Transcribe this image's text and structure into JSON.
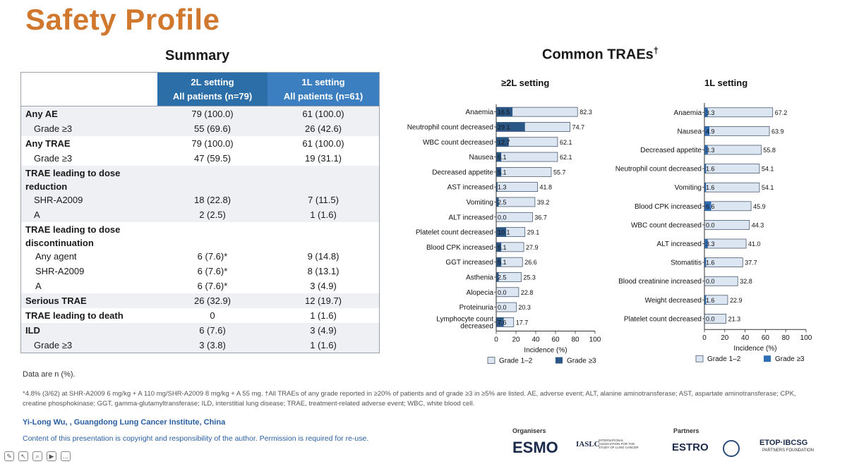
{
  "title": "Safety Profile",
  "summary": {
    "heading": "Summary",
    "col1": [
      "2L setting",
      "All patients (n=79)"
    ],
    "col2": [
      "1L setting",
      "All patients (n=61)"
    ],
    "rows": [
      {
        "label": "Any AE",
        "v1": "79 (100.0)",
        "v2": "61 (100.0)"
      },
      {
        "label": "Grade ≥3",
        "v1": "55 (69.6)",
        "v2": "26 (42.6)"
      },
      {
        "label": "Any TRAE",
        "v1": "79 (100.0)",
        "v2": "61 (100.0)"
      },
      {
        "label": "Grade ≥3",
        "v1": "47 (59.5)",
        "v2": "19 (31.1)"
      },
      {
        "label": "TRAE  leading to dose reduction",
        "v1": "",
        "v2": ""
      },
      {
        "label": "SHR-A2009",
        "v1": "18 (22.8)",
        "v2": "7 (11.5)"
      },
      {
        "label": "A",
        "v1": "2 (2.5)",
        "v2": "1 (1.6)"
      },
      {
        "label": "TRAE leading to dose discontinuation",
        "v1": "",
        "v2": ""
      },
      {
        "label": "Any agent",
        "v1": "6 (7.6)*",
        "v2": "9 (14.8)"
      },
      {
        "label": "SHR-A2009",
        "v1": "6 (7.6)*",
        "v2": "8 (13.1)"
      },
      {
        "label": "A",
        "v1": "6 (7.6)*",
        "v2": "3 (4.9)"
      },
      {
        "label": "Serious TRAE",
        "v1": "26 (32.9)",
        "v2": "12 (19.7)"
      },
      {
        "label": "TRAE leading to death",
        "v1": "0",
        "v2": "1 (1.6)"
      },
      {
        "label": "ILD",
        "v1": "6 (7.6)",
        "v2": "3 (4.9)"
      },
      {
        "label": "Grade ≥3",
        "v1": "3 (3.8)",
        "v2": "1 (1.6)"
      }
    ],
    "note": "Data are n (%)."
  },
  "trae": {
    "heading": "Common TRAEs",
    "heading_sup": "†"
  },
  "chart_data": [
    {
      "type": "bar",
      "orientation": "horizontal",
      "title": "≥2L setting",
      "xlabel": "Incidence (%)",
      "xlim": [
        0,
        100
      ],
      "xticks": [
        0,
        20,
        40,
        60,
        80,
        100
      ],
      "categories": [
        "Anaemia",
        "Neutrophil count decreased",
        "WBC count decreased",
        "Nausea",
        "Decreased appetite",
        "AST increased",
        "Vomiting",
        "ALT increased",
        "Platelet count decreased",
        "Blood CPK increased",
        "GGT increased",
        "Asthenia",
        "Alopecia",
        "Proteinuria",
        "Lymphocyte count decreased"
      ],
      "series": [
        {
          "name": "Grade 1–2",
          "values": [
            82.3,
            74.7,
            62.1,
            62.1,
            55.7,
            41.8,
            39.2,
            36.7,
            29.1,
            27.9,
            26.6,
            25.3,
            22.8,
            20.3,
            17.7
          ]
        },
        {
          "name": "Grade ≥3",
          "values": [
            16.5,
            29.1,
            12.7,
            5.1,
            5.1,
            1.3,
            2.5,
            0.0,
            10.1,
            5.1,
            5.1,
            2.5,
            0.0,
            0.0,
            7.6
          ]
        }
      ],
      "legend": [
        "Grade 1–2",
        "Grade ≥3"
      ]
    },
    {
      "type": "bar",
      "orientation": "horizontal",
      "title": "1L setting",
      "xlabel": "Incidence (%)",
      "xlim": [
        0,
        100
      ],
      "xticks": [
        0,
        20,
        40,
        60,
        80,
        100
      ],
      "categories": [
        "Anaemia",
        "Nausea",
        "Decreased appetite",
        "Neutrophil count decreased",
        "Vomiting",
        "Blood CPK increased",
        "WBC count decreased",
        "ALT increased",
        "Stomatitis",
        "Blood creatinine increased",
        "Weight decreased",
        "Platelet count decreased"
      ],
      "series": [
        {
          "name": "Grade 1–2",
          "values": [
            67.2,
            63.9,
            55.8,
            54.1,
            54.1,
            45.9,
            44.3,
            41.0,
            37.7,
            32.8,
            22.9,
            21.3
          ]
        },
        {
          "name": "Grade ≥3",
          "values": [
            3.3,
            4.9,
            3.3,
            1.6,
            1.6,
            6.6,
            0.0,
            3.3,
            1.6,
            0.0,
            1.6,
            0.0
          ]
        }
      ],
      "legend": [
        "Grade 1–2",
        "Grade ≥3"
      ]
    }
  ],
  "colors": {
    "title": "#d1782f",
    "light_bar": "#dce6f2",
    "dark_bar": "#2b5786",
    "dark_bar_1L": "#2f6db4",
    "header_blue": "#2c6ea8"
  },
  "footnote": "*4.8% (3/62) at SHR-A2009 6 mg/kg + A 110 mg/SHR-A2009 8 mg/kg + A 55 mg. †All TRAEs of any grade reported in ≥20% of patients and of grade ≥3 in ≥5% are listed. AE, adverse event; ALT, alanine aminotransferase; AST, aspartate aminotransferase; CPK, creatine phosphokinase; GGT, gamma-glutamyltransferase; ILD, interstitial lung disease; TRAE, treatment-related adverse event; WBC, white blood cell.",
  "author": "Yi-Long Wu, , Guangdong Lung Cancer Institute, China",
  "copyright": "Content of this presentation is copyright and responsibility of the author. Permission is required for re-use.",
  "logos": {
    "organisers_label": "Organisers",
    "partners_label": "Partners",
    "esmo": "ESMO",
    "iaslc": "IASLC",
    "iaslc_sub": "INTERNATIONAL ASSOCIATION FOR THE STUDY OF LUNG CANCER",
    "estro": "ESTRO",
    "etop": "ETOP·IBCSG",
    "etop_sub": "PARTNERS FOUNDATION"
  }
}
